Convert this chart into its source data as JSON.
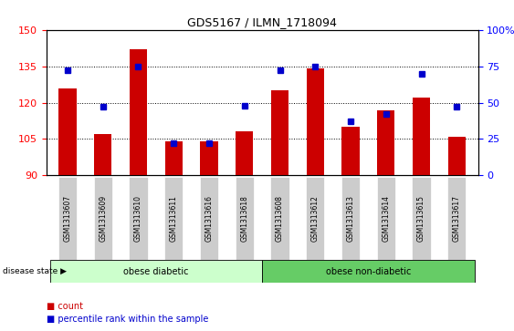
{
  "title": "GDS5167 / ILMN_1718094",
  "samples": [
    "GSM1313607",
    "GSM1313609",
    "GSM1313610",
    "GSM1313611",
    "GSM1313616",
    "GSM1313618",
    "GSM1313608",
    "GSM1313612",
    "GSM1313613",
    "GSM1313614",
    "GSM1313615",
    "GSM1313617"
  ],
  "counts": [
    126,
    107,
    142,
    104,
    104,
    108,
    125,
    134,
    110,
    117,
    122,
    106
  ],
  "percentiles": [
    72,
    47,
    75,
    22,
    22,
    48,
    72,
    75,
    37,
    42,
    70,
    47
  ],
  "ylim_left": [
    90,
    150
  ],
  "ylim_right": [
    0,
    100
  ],
  "yticks_left": [
    90,
    105,
    120,
    135,
    150
  ],
  "yticks_right": [
    0,
    25,
    50,
    75,
    100
  ],
  "bar_color": "#cc0000",
  "dot_color": "#0000cc",
  "groups": [
    {
      "label": "obese diabetic",
      "start": 0,
      "end": 5,
      "color": "#ccffcc",
      "edge_color": "#88cc88"
    },
    {
      "label": "obese non-diabetic",
      "start": 6,
      "end": 11,
      "color": "#66cc66",
      "edge_color": "#44aa44"
    }
  ],
  "group_label_prefix": "disease state",
  "xticklabel_bg": "#cccccc",
  "legend_count_label": "count",
  "legend_pct_label": "percentile rank within the sample",
  "bar_width": 0.5
}
